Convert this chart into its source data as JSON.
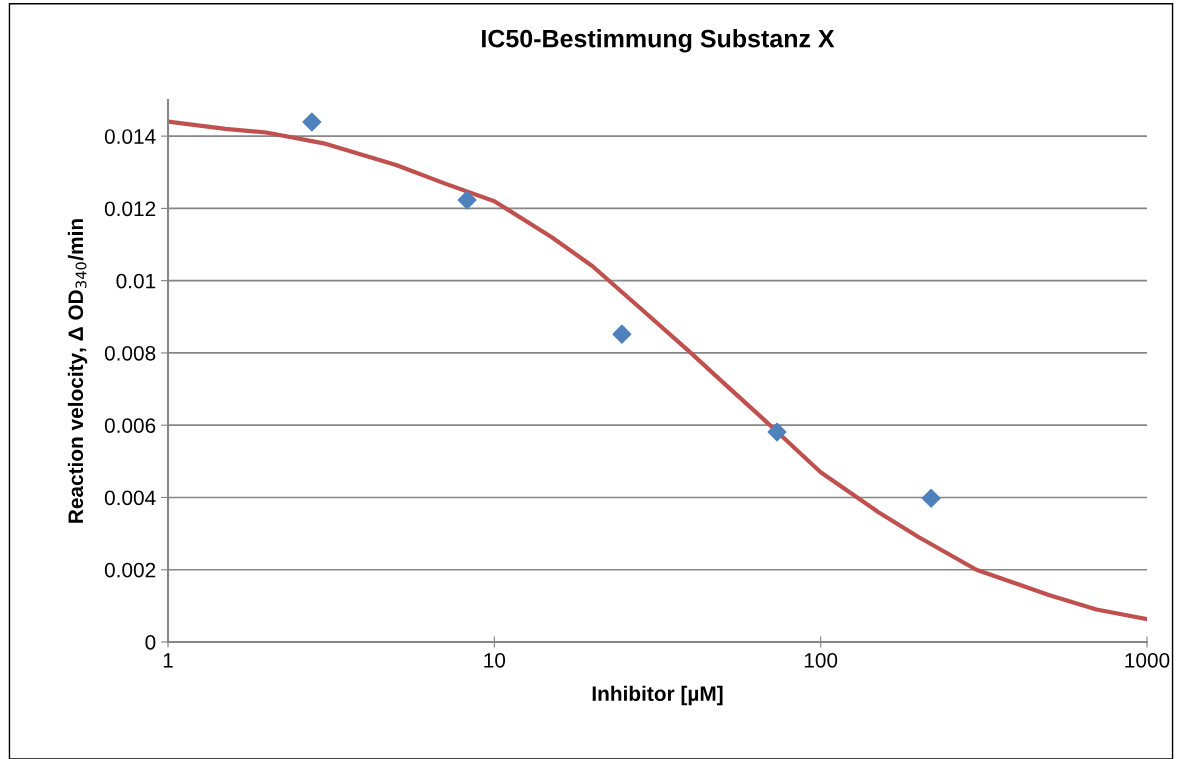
{
  "chart_data": {
    "type": "scatter",
    "title": "IC50-Bestimmung Substanz X",
    "xlabel": "Inhibitor [µM]",
    "ylabel": "Reaction velocity, Δ OD$_{340}$/min",
    "log": "x",
    "xlim": [
      1,
      1000
    ],
    "xticks": [
      1,
      10,
      100,
      1000
    ],
    "ylim": [
      0,
      0.015
    ],
    "yticks": [
      0,
      0.002,
      0.004,
      0.006,
      0.008,
      0.01,
      0.012,
      0.014
    ],
    "grid": "y",
    "series": [
      {
        "marker": "diamond",
        "color": "#4f81bd",
        "x": [
          2.76,
          8.25,
          24.6,
          73.5,
          218
        ],
        "values": [
          0.01439,
          0.01223,
          0.00852,
          0.00581,
          0.00398
        ]
      },
      {
        "type": "line",
        "marker": "none",
        "line_style": "solid",
        "color": "#c0504d",
        "x": [
          1,
          1.5,
          2,
          3,
          5,
          7,
          10,
          15,
          20,
          30,
          40,
          50,
          70,
          100,
          150,
          200,
          300,
          500,
          700,
          1000
        ],
        "values": [
          0.0144,
          0.0142,
          0.0141,
          0.0138,
          0.0132,
          0.0127,
          0.0122,
          0.0112,
          0.0104,
          0.009,
          0.008,
          0.0072,
          0.006,
          0.0047,
          0.0036,
          0.0029,
          0.002,
          0.0013,
          0.0009,
          0.00063
        ]
      }
    ]
  }
}
